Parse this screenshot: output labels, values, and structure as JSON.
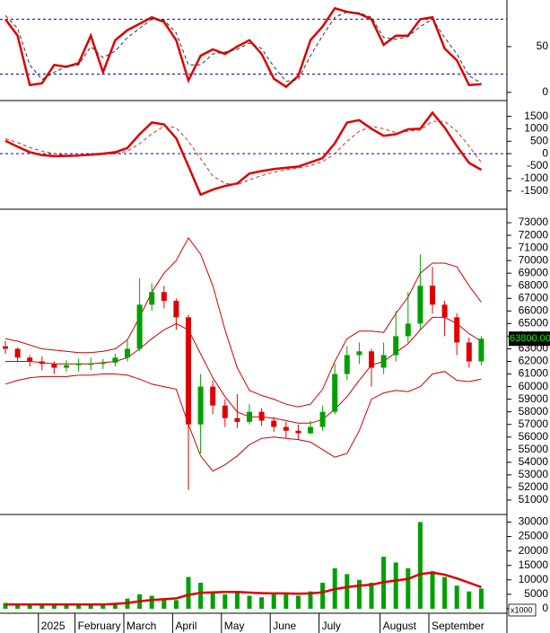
{
  "chart_data": [
    {
      "type": "line",
      "ylim": [
        -8,
        101
      ],
      "yticks": [
        0,
        50
      ],
      "hlines": [
        20,
        80
      ],
      "hline_color": "#0000cc",
      "series": [
        {
          "color": "#dd0000",
          "values": [
            80,
            62,
            8,
            10,
            30,
            28,
            32,
            62,
            22,
            57,
            68,
            75,
            82,
            77,
            57,
            13,
            40,
            47,
            42,
            50,
            57,
            42,
            15,
            6,
            18,
            57,
            72,
            92,
            88,
            86,
            80,
            52,
            62,
            62,
            80,
            82,
            48,
            35,
            8,
            9
          ]
        },
        {
          "color": "#333333",
          "dash": true,
          "values": [
            84,
            70,
            30,
            14,
            22,
            28,
            30,
            50,
            38,
            45,
            60,
            70,
            80,
            79,
            65,
            30,
            30,
            42,
            44,
            47,
            54,
            48,
            28,
            12,
            14,
            40,
            62,
            82,
            88,
            87,
            82,
            60,
            58,
            61,
            72,
            80,
            60,
            42,
            18,
            10
          ]
        }
      ]
    },
    {
      "type": "line",
      "ylim": [
        -2200,
        2100
      ],
      "yticks": [
        -1500,
        -1000,
        -500,
        0,
        500,
        1000,
        1500
      ],
      "hlines": [
        0
      ],
      "hline_color": "#0000cc",
      "series": [
        {
          "color": "#dd0000",
          "values": [
            520,
            280,
            60,
            -60,
            -100,
            -90,
            -80,
            -40,
            0,
            60,
            230,
            780,
            1250,
            1180,
            620,
            -500,
            -1650,
            -1450,
            -1300,
            -1200,
            -800,
            -700,
            -620,
            -570,
            -520,
            -350,
            -180,
            420,
            1250,
            1350,
            1000,
            720,
            780,
            980,
            1000,
            1650,
            1050,
            300,
            -370,
            -650
          ]
        },
        {
          "color": "#cc3333",
          "dash": true,
          "values": [
            600,
            450,
            250,
            100,
            0,
            -60,
            -80,
            -70,
            -40,
            0,
            100,
            400,
            800,
            1100,
            1050,
            500,
            -200,
            -900,
            -1200,
            -1250,
            -1050,
            -880,
            -750,
            -650,
            -580,
            -480,
            -320,
            0,
            500,
            900,
            1100,
            1000,
            850,
            900,
            950,
            1300,
            1300,
            900,
            300,
            -350
          ]
        }
      ]
    },
    {
      "type": "candlestick",
      "ylim": [
        50000,
        74000
      ],
      "yticks": [
        51000,
        52000,
        53000,
        54000,
        55000,
        56000,
        57000,
        58000,
        59000,
        60000,
        61000,
        62000,
        63000,
        64000,
        65000,
        66000,
        67000,
        68000,
        69000,
        70000,
        71000,
        72000,
        73000
      ],
      "up_color": "#00a000",
      "down_color": "#e00000",
      "open": [
        63200,
        63000,
        62300,
        62000,
        61800,
        61500,
        61700,
        61800,
        61800,
        61900,
        62300,
        63000,
        66500,
        67500,
        66800,
        65500,
        57000,
        60000,
        58500,
        57500,
        57200,
        58000,
        57300,
        56800,
        56500,
        56300,
        56800,
        58000,
        61000,
        62500,
        62800,
        61500,
        62500,
        64000,
        65000,
        68000,
        66500,
        65500,
        63500,
        62000
      ],
      "high": [
        63600,
        63100,
        62500,
        62400,
        62000,
        62100,
        62200,
        62300,
        62200,
        62600,
        63800,
        68600,
        68200,
        68000,
        67000,
        65700,
        61000,
        60500,
        59000,
        59400,
        58600,
        58300,
        57600,
        57200,
        57000,
        57300,
        58500,
        61800,
        63200,
        63500,
        63000,
        63500,
        66000,
        67500,
        70500,
        69500,
        66800,
        65800,
        63900,
        64000
      ],
      "low": [
        62600,
        62000,
        61600,
        61300,
        61000,
        61200,
        61200,
        61300,
        61400,
        61600,
        62000,
        62800,
        66000,
        66200,
        64500,
        51800,
        54700,
        57800,
        56800,
        56700,
        57000,
        56900,
        56400,
        55900,
        55800,
        56200,
        56500,
        57800,
        60500,
        61800,
        60000,
        61000,
        62000,
        63500,
        64500,
        65800,
        64000,
        62500,
        61500,
        61700
      ],
      "close": [
        63000,
        62300,
        62000,
        61800,
        61500,
        61700,
        61800,
        61800,
        61900,
        62300,
        63000,
        66500,
        67500,
        66800,
        65500,
        57000,
        60000,
        58500,
        57500,
        57200,
        58000,
        57300,
        56800,
        56500,
        56300,
        56800,
        58000,
        61000,
        62500,
        62800,
        61500,
        62500,
        64000,
        65000,
        68000,
        66500,
        65500,
        63500,
        62000,
        63800
      ],
      "bands": [
        {
          "color": "#cc0000",
          "values": [
            63800,
            63600,
            63300,
            63000,
            62900,
            62800,
            62700,
            62700,
            62800,
            63000,
            63700,
            65500,
            67500,
            69000,
            70000,
            71800,
            70500,
            68000,
            64500,
            61500,
            59700,
            59300,
            59000,
            58600,
            58400,
            58600,
            59800,
            62000,
            63800,
            64400,
            64400,
            64300,
            65800,
            67100,
            69000,
            69800,
            69800,
            69500,
            68000,
            66700
          ]
        },
        {
          "color": "#cc0000",
          "values": [
            62000,
            62000,
            62000,
            61900,
            61800,
            61800,
            61800,
            61800,
            61900,
            62000,
            62300,
            63000,
            63800,
            64500,
            65000,
            64500,
            62600,
            60700,
            59200,
            58000,
            57600,
            57600,
            57500,
            57300,
            57100,
            57100,
            57400,
            58200,
            59200,
            60500,
            61700,
            62000,
            62700,
            63400,
            64500,
            65500,
            65500,
            65000,
            64200,
            63600
          ]
        },
        {
          "color": "#cc0000",
          "values": [
            60200,
            60500,
            60700,
            60800,
            60800,
            60800,
            60900,
            60900,
            61000,
            61000,
            60900,
            60600,
            60200,
            60000,
            59800,
            57000,
            54500,
            53300,
            53800,
            54500,
            55400,
            55900,
            56000,
            55900,
            55800,
            55600,
            55000,
            54400,
            54700,
            56500,
            59000,
            59500,
            59700,
            59600,
            60000,
            61000,
            61200,
            60500,
            60400,
            60600
          ]
        }
      ],
      "last_label": {
        "value": 63800,
        "label": "63800.00"
      }
    },
    {
      "type": "bar",
      "ylim": [
        0,
        32000
      ],
      "yticks": [
        0,
        5000,
        10000,
        15000,
        20000,
        25000,
        30000
      ],
      "color": "#00a000",
      "unit_label": "x1000",
      "categories": [
        null,
        null,
        null,
        "2025",
        null,
        null,
        "February",
        null,
        null,
        null,
        "March",
        null,
        null,
        null,
        "April",
        null,
        null,
        null,
        "May",
        null,
        null,
        null,
        "June",
        null,
        null,
        null,
        "July",
        null,
        null,
        null,
        null,
        "August",
        null,
        null,
        null,
        "September",
        null,
        null,
        null,
        null
      ],
      "values": [
        2000,
        1800,
        1500,
        1500,
        1500,
        1800,
        1600,
        1500,
        1700,
        2000,
        3500,
        5000,
        4500,
        3500,
        3000,
        11000,
        9000,
        6000,
        5000,
        5500,
        4500,
        4000,
        5000,
        5500,
        4500,
        6000,
        9000,
        14000,
        12000,
        10000,
        9000,
        18000,
        16000,
        14000,
        30000,
        13000,
        11000,
        8000,
        6000,
        7000
      ],
      "line": {
        "color": "#dd0000",
        "values": [
          1500,
          1500,
          1500,
          1500,
          1500,
          1500,
          1500,
          1500,
          1500,
          1700,
          2000,
          2600,
          3000,
          3300,
          3600,
          4800,
          5500,
          5700,
          5800,
          5800,
          5600,
          5400,
          5300,
          5300,
          5200,
          5300,
          5700,
          6800,
          7500,
          8000,
          8300,
          9200,
          9800,
          10300,
          12000,
          12500,
          11800,
          10500,
          9000,
          7500
        ]
      }
    }
  ]
}
